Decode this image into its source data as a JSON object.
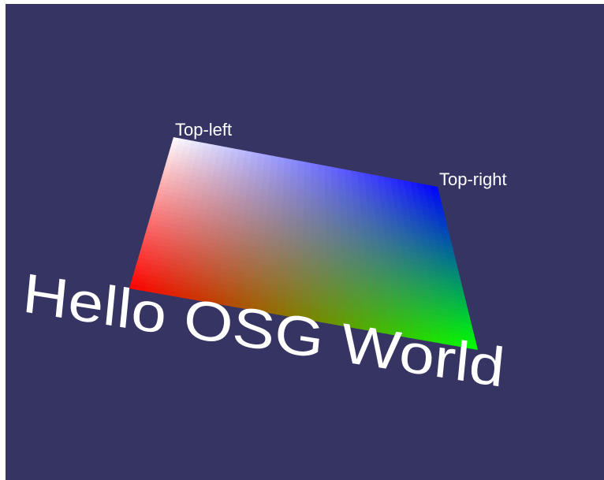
{
  "scene": {
    "background_color": "#353462",
    "quad": {
      "corner_colors": {
        "top_left": "#ffffff",
        "top_right": "#0000ff",
        "bottom_right": "#00ff00",
        "bottom_left": "#ff0000"
      }
    },
    "labels": {
      "top_left": "Top-left",
      "top_right": "Top-right"
    },
    "hello_text": "Hello OSG World",
    "text_color": "#ffffff"
  }
}
